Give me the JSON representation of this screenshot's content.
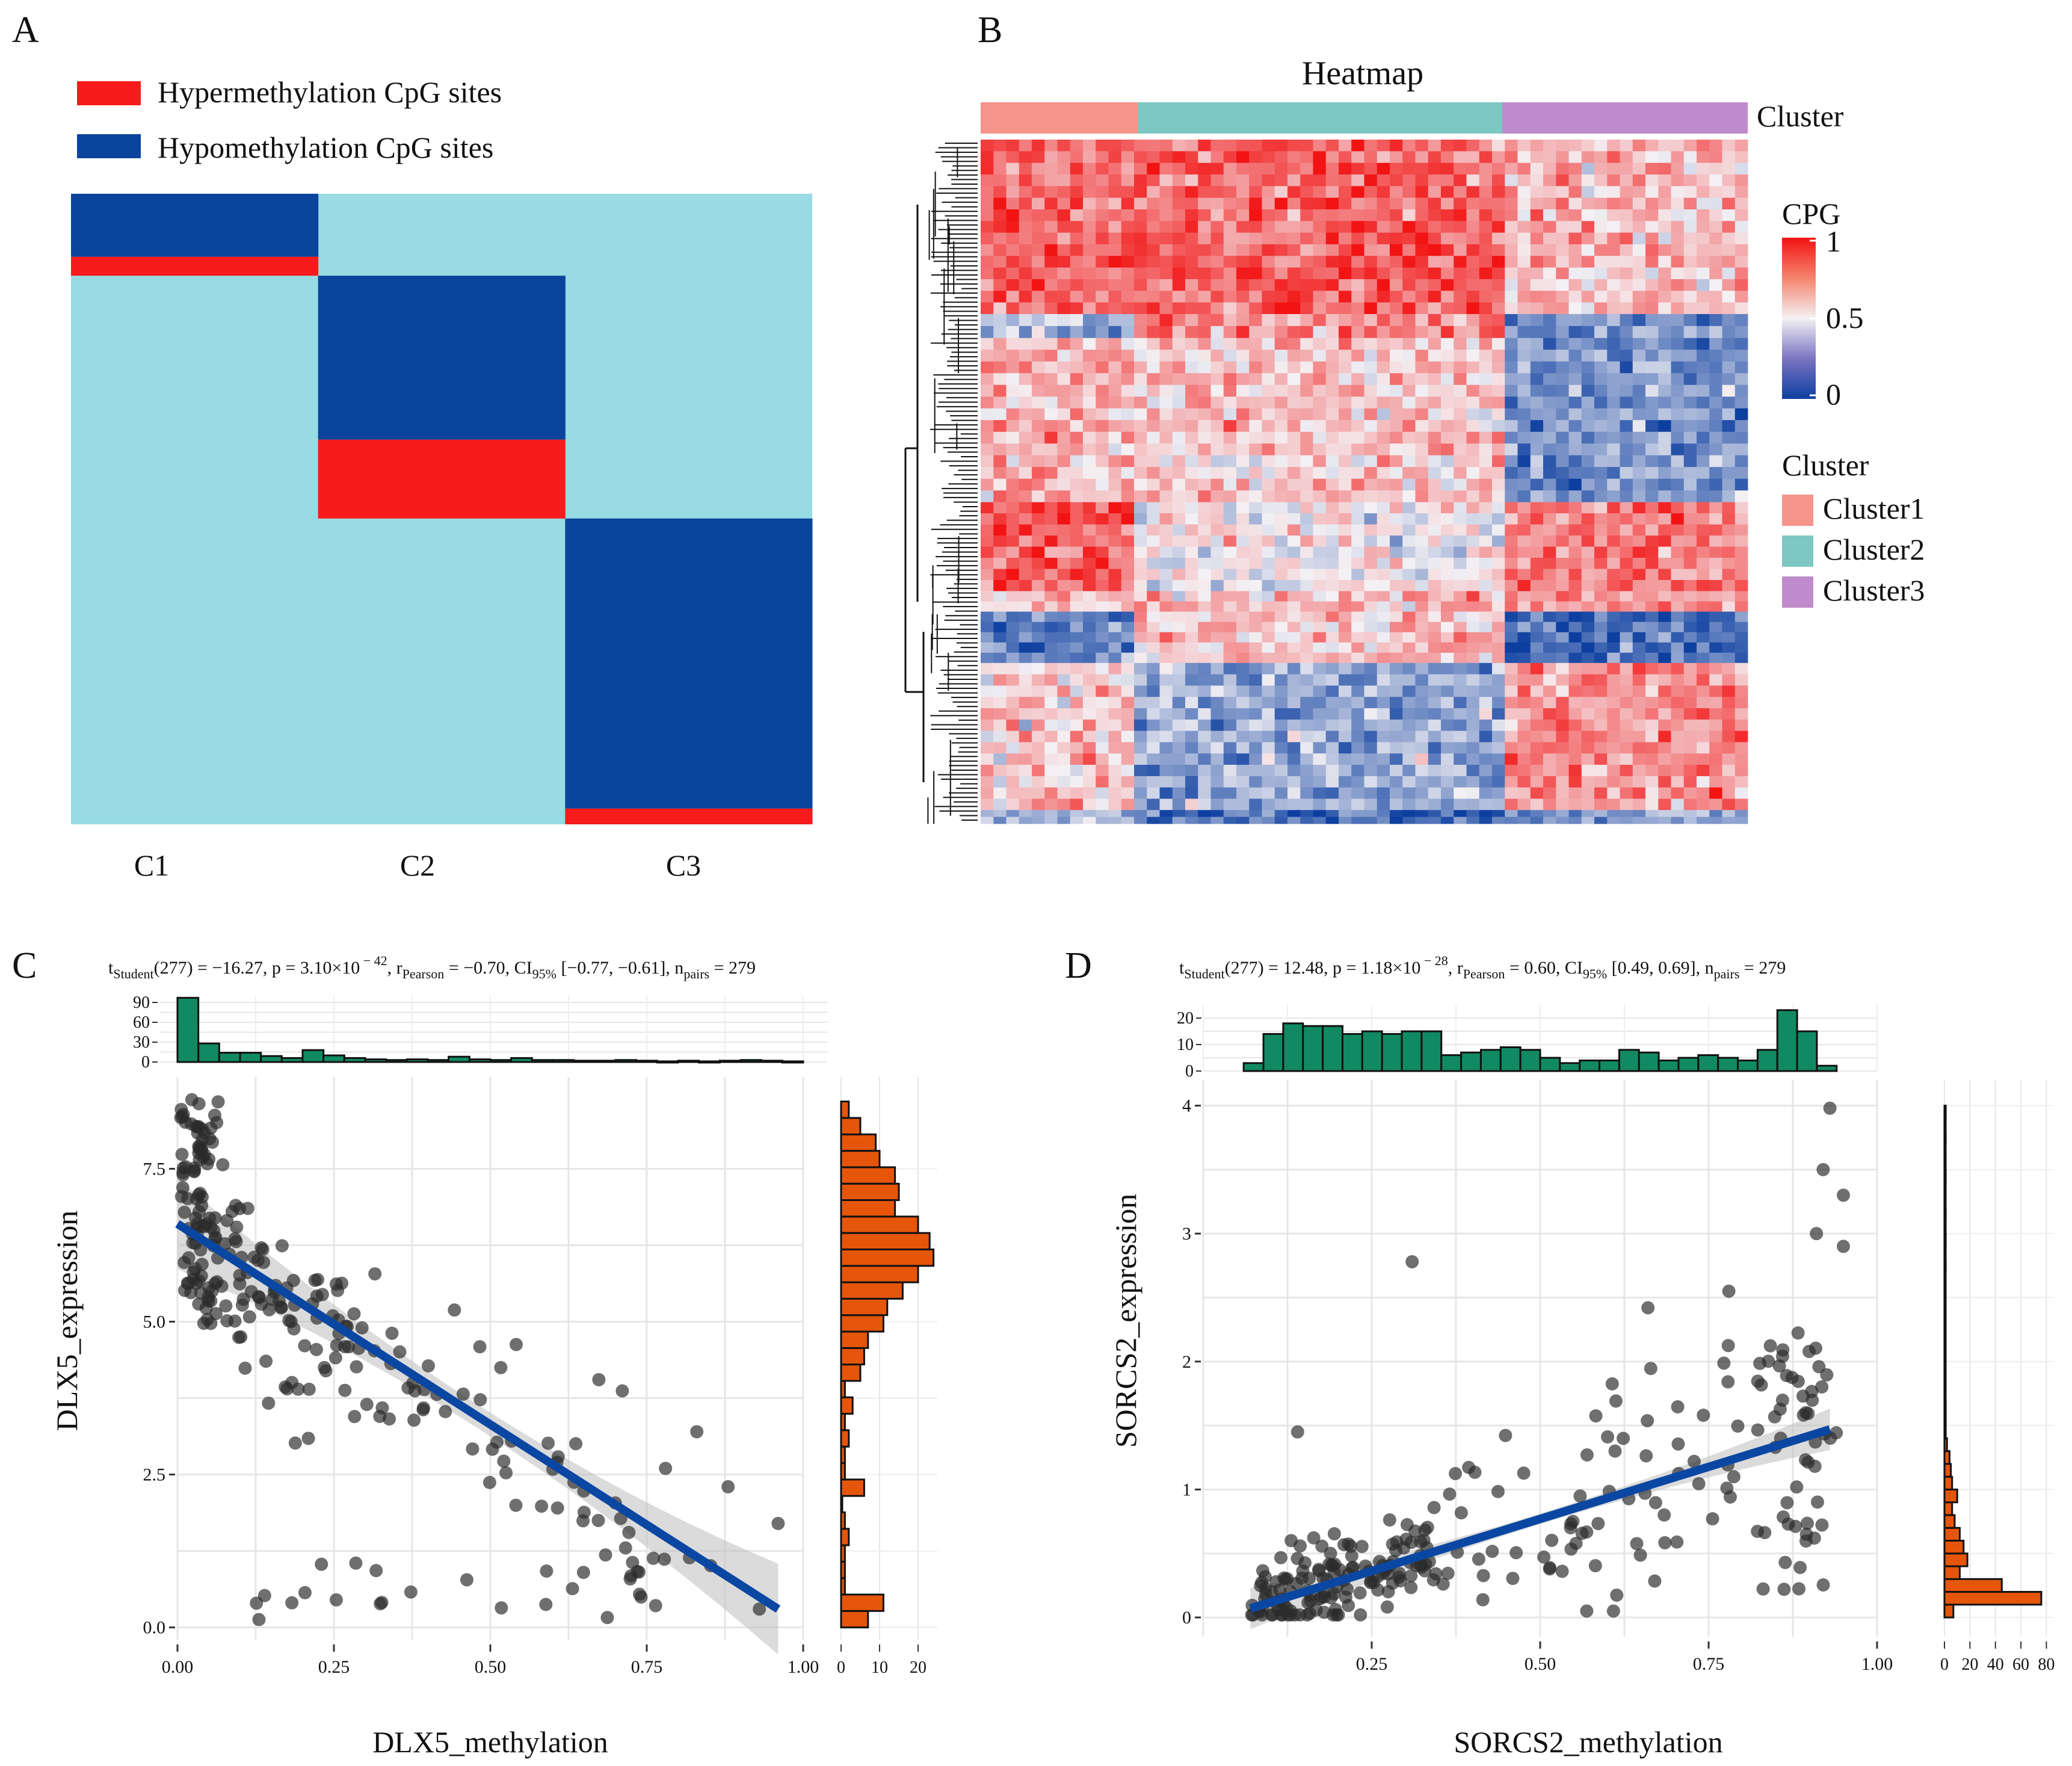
{
  "panels": {
    "A": {
      "label": "A",
      "legend": [
        "Hypermethylation CpG sites",
        "Hypomethylation CpG sites"
      ],
      "columns": [
        "C1",
        "C2",
        "C3"
      ],
      "colors": {
        "hyper": "#f71b1b",
        "hypo": "#0a449c",
        "background": "#98dbe2"
      }
    },
    "B": {
      "label": "B",
      "title": "Heatmap",
      "annotation_label": "Cluster",
      "colorbar_title": "CPG",
      "colorbar_ticks": [
        "1",
        "0.5",
        "0"
      ],
      "cluster_legend_title": "Cluster",
      "clusters": [
        {
          "name": "Cluster1",
          "color": "#f4948a"
        },
        {
          "name": "Cluster2",
          "color": "#7ec8c3"
        },
        {
          "name": "Cluster3",
          "color": "#c08bcd"
        }
      ]
    },
    "C": {
      "label": "C",
      "stat_text": {
        "t": "t",
        "t_sub": "Student",
        "main": "(277) = −16.27, p = 3.10×10",
        "exp": " − 42",
        "r": ", r",
        "r_sub": "Pearson",
        "tail": " = −0.70, CI",
        "ci_sub": "95%",
        "tail2": " [−0.77, −0.61], n",
        "n_sub": "pairs",
        "tail3": " = 279"
      }
    },
    "D": {
      "label": "D",
      "stat_text": {
        "t": "t",
        "t_sub": "Student",
        "main": "(277) = 12.48, p = 1.18×10",
        "exp": " − 28",
        "r": ", r",
        "r_sub": "Pearson",
        "tail": " = 0.60, CI",
        "ci_sub": "95%",
        "tail2": " [0.49, 0.69], n",
        "n_sub": "pairs",
        "tail3": " = 279"
      }
    }
  },
  "chart_data": [
    {
      "type": "heatmap",
      "panel": "A",
      "columns": [
        "C1",
        "C2",
        "C3"
      ],
      "legend": [
        "Hypermethylation CpG sites",
        "Hypomethylation CpG sites"
      ],
      "blocks": [
        {
          "column": "C1",
          "state": "hypo",
          "row_from": 0,
          "row_to": 0.1
        },
        {
          "column": "C1",
          "state": "hyper",
          "row_from": 0.1,
          "row_to": 0.13
        },
        {
          "column": "C2",
          "state": "hypo",
          "row_from": 0.13,
          "row_to": 0.39
        },
        {
          "column": "C2",
          "state": "hyper",
          "row_from": 0.39,
          "row_to": 0.515
        },
        {
          "column": "C3",
          "state": "hypo",
          "row_from": 0.515,
          "row_to": 0.975
        },
        {
          "column": "C3",
          "state": "hyper",
          "row_from": 0.975,
          "row_to": 1.0
        }
      ]
    },
    {
      "type": "heatmap",
      "panel": "B",
      "title": "Heatmap",
      "color_scale": {
        "title": "CPG",
        "min": 0,
        "mid": 0.5,
        "max": 1
      },
      "clusters": [
        "Cluster1",
        "Cluster2",
        "Cluster3"
      ],
      "cluster_fraction": [
        0.205,
        0.475,
        0.32
      ]
    },
    {
      "type": "scatter",
      "panel": "C",
      "xlabel": "DLX5_methylation",
      "ylabel": "DLX5_expression",
      "xlim": [
        0,
        1
      ],
      "ylim": [
        -0.2,
        9.0
      ],
      "x_ticks": [
        "0.00",
        "0.25",
        "0.50",
        "0.75",
        "1.00"
      ],
      "y_ticks": [
        "0.0",
        "2.5",
        "5.0",
        "7.5"
      ],
      "regression": {
        "x": [
          0,
          0.96
        ],
        "y": [
          6.6,
          0.3
        ]
      },
      "n": 279,
      "top_hist": {
        "ticks": [
          "0",
          "30",
          "60",
          "90"
        ],
        "max": 100
      },
      "right_hist": {
        "ticks": [
          "0",
          "10",
          "20"
        ],
        "max": 25
      }
    },
    {
      "type": "scatter",
      "panel": "D",
      "xlabel": "SORCS2_methylation",
      "ylabel": "SORCS2_expression",
      "xlim": [
        0,
        1
      ],
      "ylim": [
        -0.15,
        4.2
      ],
      "x_ticks": [
        "0.25",
        "0.50",
        "0.75",
        "1.00"
      ],
      "y_ticks": [
        "0",
        "1",
        "2",
        "3",
        "4"
      ],
      "regression": {
        "x": [
          0.07,
          0.93
        ],
        "y": [
          0.07,
          1.47
        ]
      },
      "n": 279,
      "top_hist": {
        "ticks": [
          "0",
          "10",
          "20"
        ],
        "max": 25
      },
      "right_hist": {
        "ticks": [
          "0",
          "20",
          "40",
          "60",
          "80"
        ],
        "max": 85
      }
    }
  ]
}
